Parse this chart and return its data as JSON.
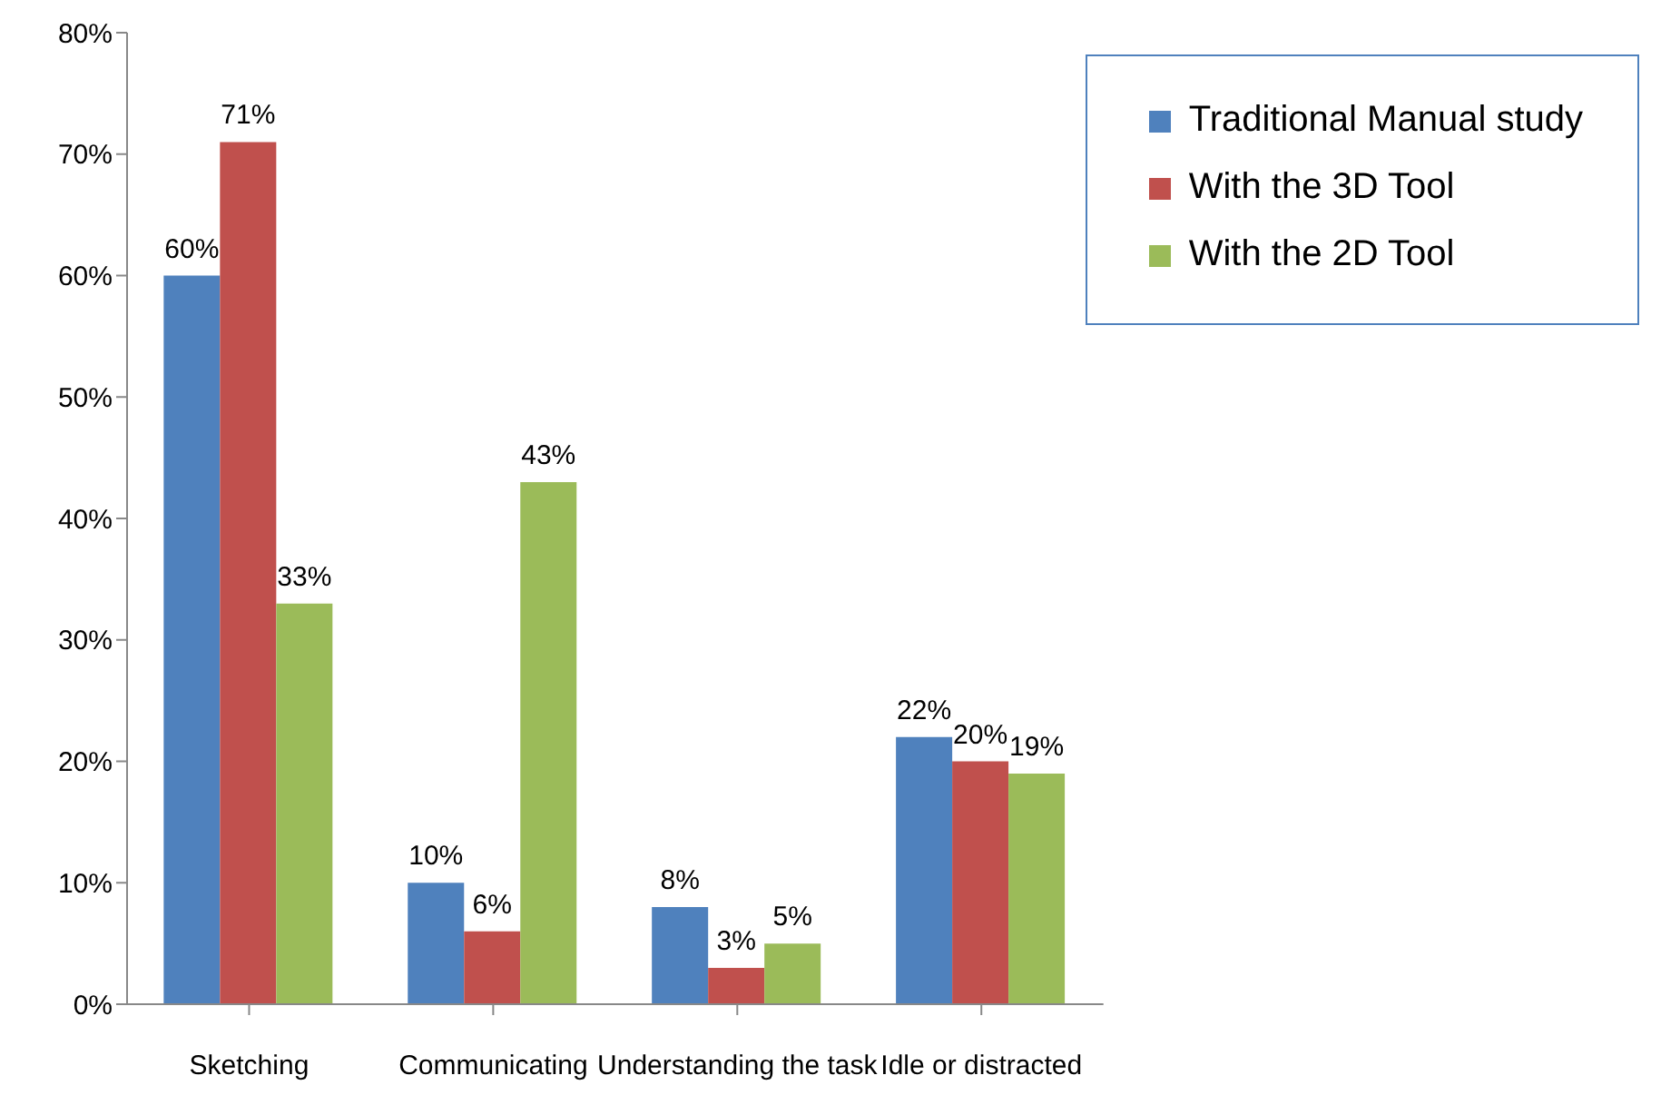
{
  "chart_data": {
    "type": "bar",
    "categories": [
      "Sketching",
      "Communicating",
      "Understanding the task",
      "Idle or distracted"
    ],
    "series": [
      {
        "name": "Traditional Manual study",
        "color": "#4f81bd",
        "values": [
          60,
          10,
          8,
          22
        ],
        "value_labels": [
          "60%",
          "10%",
          "8%",
          "22%"
        ]
      },
      {
        "name": "With the  3D Tool",
        "color": "#c0504d",
        "values": [
          71,
          6,
          3,
          20
        ],
        "value_labels": [
          "71%",
          "6%",
          "3%",
          "20%"
        ]
      },
      {
        "name": "With the  2D Tool",
        "color": "#9bbb59",
        "values": [
          33,
          43,
          5,
          19
        ],
        "value_labels": [
          "33%",
          "43%",
          "5%",
          "19%"
        ]
      }
    ],
    "ylim": [
      0,
      80
    ],
    "yticks": [
      {
        "value": 0,
        "label": "0%"
      },
      {
        "value": 10,
        "label": "10%"
      },
      {
        "value": 20,
        "label": "20%"
      },
      {
        "value": 30,
        "label": "30%"
      },
      {
        "value": 40,
        "label": "40%"
      },
      {
        "value": 50,
        "label": "50%"
      },
      {
        "value": 60,
        "label": "60%"
      },
      {
        "value": 70,
        "label": "70%"
      },
      {
        "value": 80,
        "label": "80%"
      }
    ],
    "grid": false,
    "legend": "top right"
  }
}
